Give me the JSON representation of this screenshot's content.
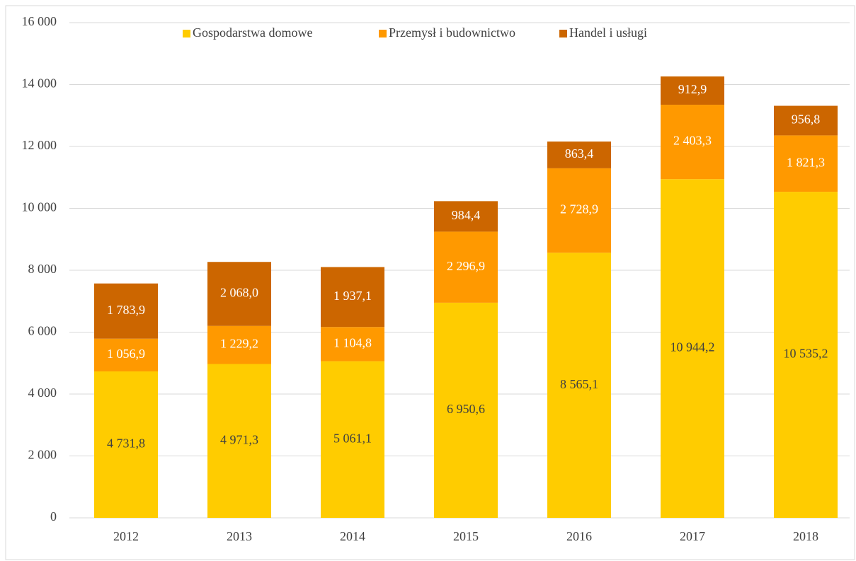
{
  "chart_data": {
    "type": "stacked_bar",
    "categories": [
      "2012",
      "2013",
      "2014",
      "2015",
      "2016",
      "2017",
      "2018"
    ],
    "series": [
      {
        "name": "Gospodarstwa domowe",
        "color": "#ffcc00",
        "values": [
          4731.8,
          4971.3,
          5061.1,
          6950.6,
          8565.1,
          10944.2,
          10535.2
        ],
        "value_labels": [
          "4 731,8",
          "4 971,3",
          "5 061,1",
          "6 950,6",
          "8 565,1",
          "10 944,2",
          "10 535,2"
        ]
      },
      {
        "name": "Przemysł i budownictwo",
        "color": "#ff9900",
        "values": [
          1056.9,
          1229.2,
          1104.8,
          2296.9,
          2728.9,
          2403.3,
          1821.3
        ],
        "value_labels": [
          "1 056,9",
          "1 229,2",
          "1 104,8",
          "2 296,9",
          "2 728,9",
          "2 403,3",
          "1 821,3"
        ]
      },
      {
        "name": "Handel i usługi",
        "color": "#cc6600",
        "values": [
          1783.9,
          2068.0,
          1937.1,
          984.4,
          863.4,
          912.9,
          956.8
        ],
        "value_labels": [
          "1 783,9",
          "2 068,0",
          "1 937,1",
          "984,4",
          "863,4",
          "912,9",
          "956,8"
        ]
      }
    ],
    "ylim": [
      0,
      16000
    ],
    "yticks": [
      0,
      {
        "value": 2000,
        "label": "2 000"
      },
      {
        "value": 4000,
        "label": "4 000"
      },
      {
        "value": 6000,
        "label": "6 000"
      },
      {
        "value": 8000,
        "label": "8 000"
      },
      {
        "value": 10000,
        "label": "10 000"
      },
      {
        "value": 12000,
        "label": "12 000"
      },
      {
        "value": 14000,
        "label": "14 000"
      },
      {
        "value": 16000,
        "label": "16 000"
      }
    ],
    "grid": true,
    "legend": "top"
  }
}
